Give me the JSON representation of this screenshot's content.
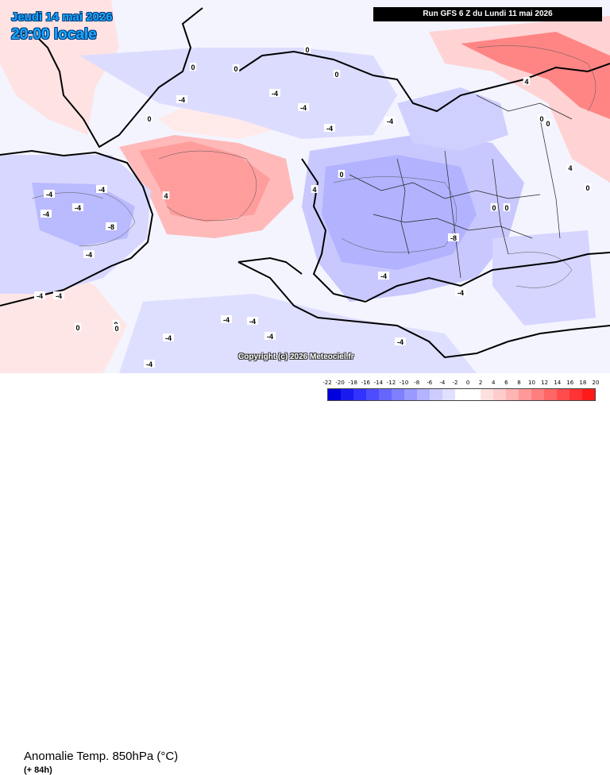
{
  "header": {
    "date": "Jeudi 14 mai 2026",
    "time": "20:00 locale",
    "run": "Run GFS 6 Z du Lundi 11 mai 2026"
  },
  "copyright": "Copyright (c) 2026 Meteociel.fr",
  "footer": {
    "title": "Anomalie Temp. 850hPa (°C)",
    "lead": "(+ 84h)"
  },
  "legend": {
    "labels": [
      "-22",
      "-20",
      "-18",
      "-16",
      "-14",
      "-12",
      "-10",
      "-8",
      "-6",
      "-4",
      "-2",
      "0",
      "2",
      "4",
      "6",
      "8",
      "10",
      "12",
      "14",
      "16",
      "18",
      "20"
    ],
    "colors": [
      "#0000dd",
      "#1a1aee",
      "#3333ff",
      "#4d4dff",
      "#6666ff",
      "#7f7fff",
      "#9999ff",
      "#b3b3ff",
      "#ccccff",
      "#e0e0ff",
      "#ffffff",
      "#ffffff",
      "#ffe0e0",
      "#ffcccc",
      "#ffb3b3",
      "#ff9999",
      "#ff7f7f",
      "#ff6666",
      "#ff4d4d",
      "#ff3333",
      "#ff1a1a"
    ]
  },
  "map_labels": [
    {
      "t": "0"
    },
    {
      "t": "0"
    },
    {
      "t": "0"
    },
    {
      "t": "0"
    },
    {
      "t": "0"
    },
    {
      "t": "0"
    },
    {
      "t": "0"
    },
    {
      "t": "0"
    },
    {
      "t": "-4"
    },
    {
      "t": "-4"
    },
    {
      "t": "-4"
    },
    {
      "t": "-4"
    },
    {
      "t": "-4"
    },
    {
      "t": "-4"
    },
    {
      "t": "-4"
    },
    {
      "t": "-4"
    },
    {
      "t": "-4"
    },
    {
      "t": "-4"
    },
    {
      "t": "-4"
    },
    {
      "t": "-4"
    },
    {
      "t": "-4"
    },
    {
      "t": "-4"
    },
    {
      "t": "-4"
    },
    {
      "t": "-4"
    },
    {
      "t": "-8"
    },
    {
      "t": "-8"
    },
    {
      "t": "4"
    },
    {
      "t": "4"
    },
    {
      "t": "4"
    },
    {
      "t": "4"
    },
    {
      "t": "0"
    },
    {
      "t": "0"
    },
    {
      "t": "0"
    },
    {
      "t": "0"
    },
    {
      "t": "-4"
    },
    {
      "t": "-4"
    },
    {
      "t": "-4"
    },
    {
      "t": "0"
    },
    {
      "t": "0"
    },
    {
      "t": "-4"
    }
  ]
}
